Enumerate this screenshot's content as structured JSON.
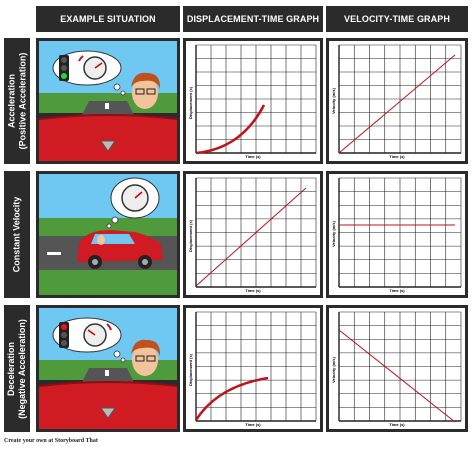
{
  "headers": {
    "example": "EXAMPLE SITUATION",
    "displacement": "DISPLACEMENT-TIME GRAPH",
    "velocity": "VELOCITY-TIME GRAPH"
  },
  "rows": [
    {
      "line1": "Acceleration",
      "line2": "(Positive Acceleration)"
    },
    {
      "line1": "Constant Velocity",
      "line2": ""
    },
    {
      "line1": "Deceleration",
      "line2": "(Negative Acceleration)"
    }
  ],
  "axes": {
    "time": "Time (s)",
    "displacement": "Displacement (s)",
    "velocity": "Velocity (m/s)",
    "velocity_short": "Velocity (m/s)"
  },
  "footer": "Create your own at Storyboard That",
  "colors": {
    "line": "#c0121b",
    "car": "#d01b22",
    "header": "#2b2b2b"
  }
}
